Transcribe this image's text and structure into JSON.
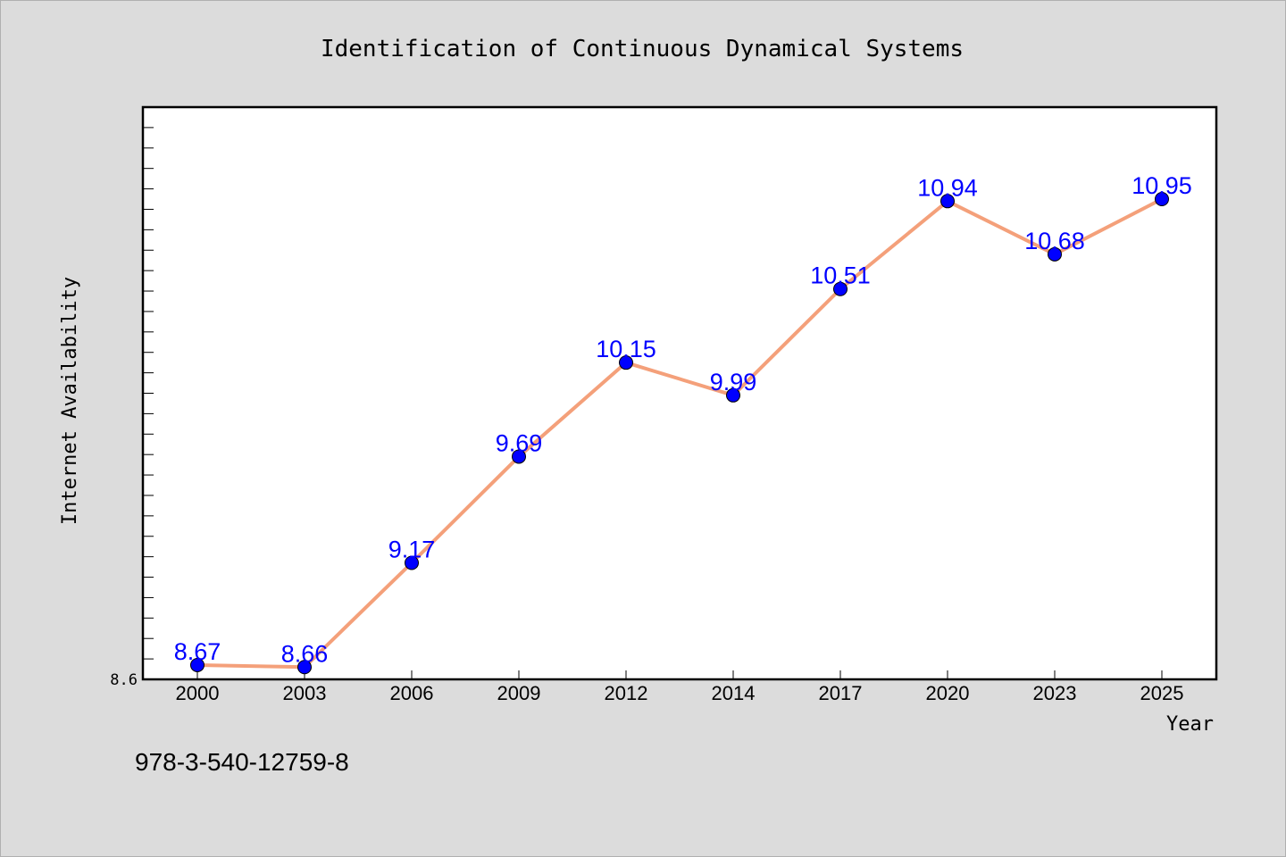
{
  "chart_data": {
    "type": "line",
    "title": "Identification of Continuous Dynamical Systems",
    "xlabel": "Year",
    "ylabel": "Internet Availability",
    "categories": [
      "2000",
      "2003",
      "2006",
      "2009",
      "2012",
      "2014",
      "2017",
      "2020",
      "2023",
      "2025"
    ],
    "values": [
      8.67,
      8.66,
      9.17,
      9.69,
      10.15,
      9.99,
      10.51,
      10.94,
      10.68,
      10.95
    ],
    "data_labels": [
      "8.67",
      "8.66",
      "9.17",
      "9.69",
      "10.15",
      "9.99",
      "10.51",
      "10.94",
      "10.68",
      "10.95"
    ],
    "ylim": [
      8.6,
      11.4
    ],
    "ytick_labels": [
      "8.6"
    ],
    "grid": false,
    "legend": "none",
    "line_color": "#f4a07a",
    "marker_color": "#0000ff",
    "label_color": "#0000ff"
  },
  "footer": {
    "isbn": "978-3-540-12759-8"
  }
}
